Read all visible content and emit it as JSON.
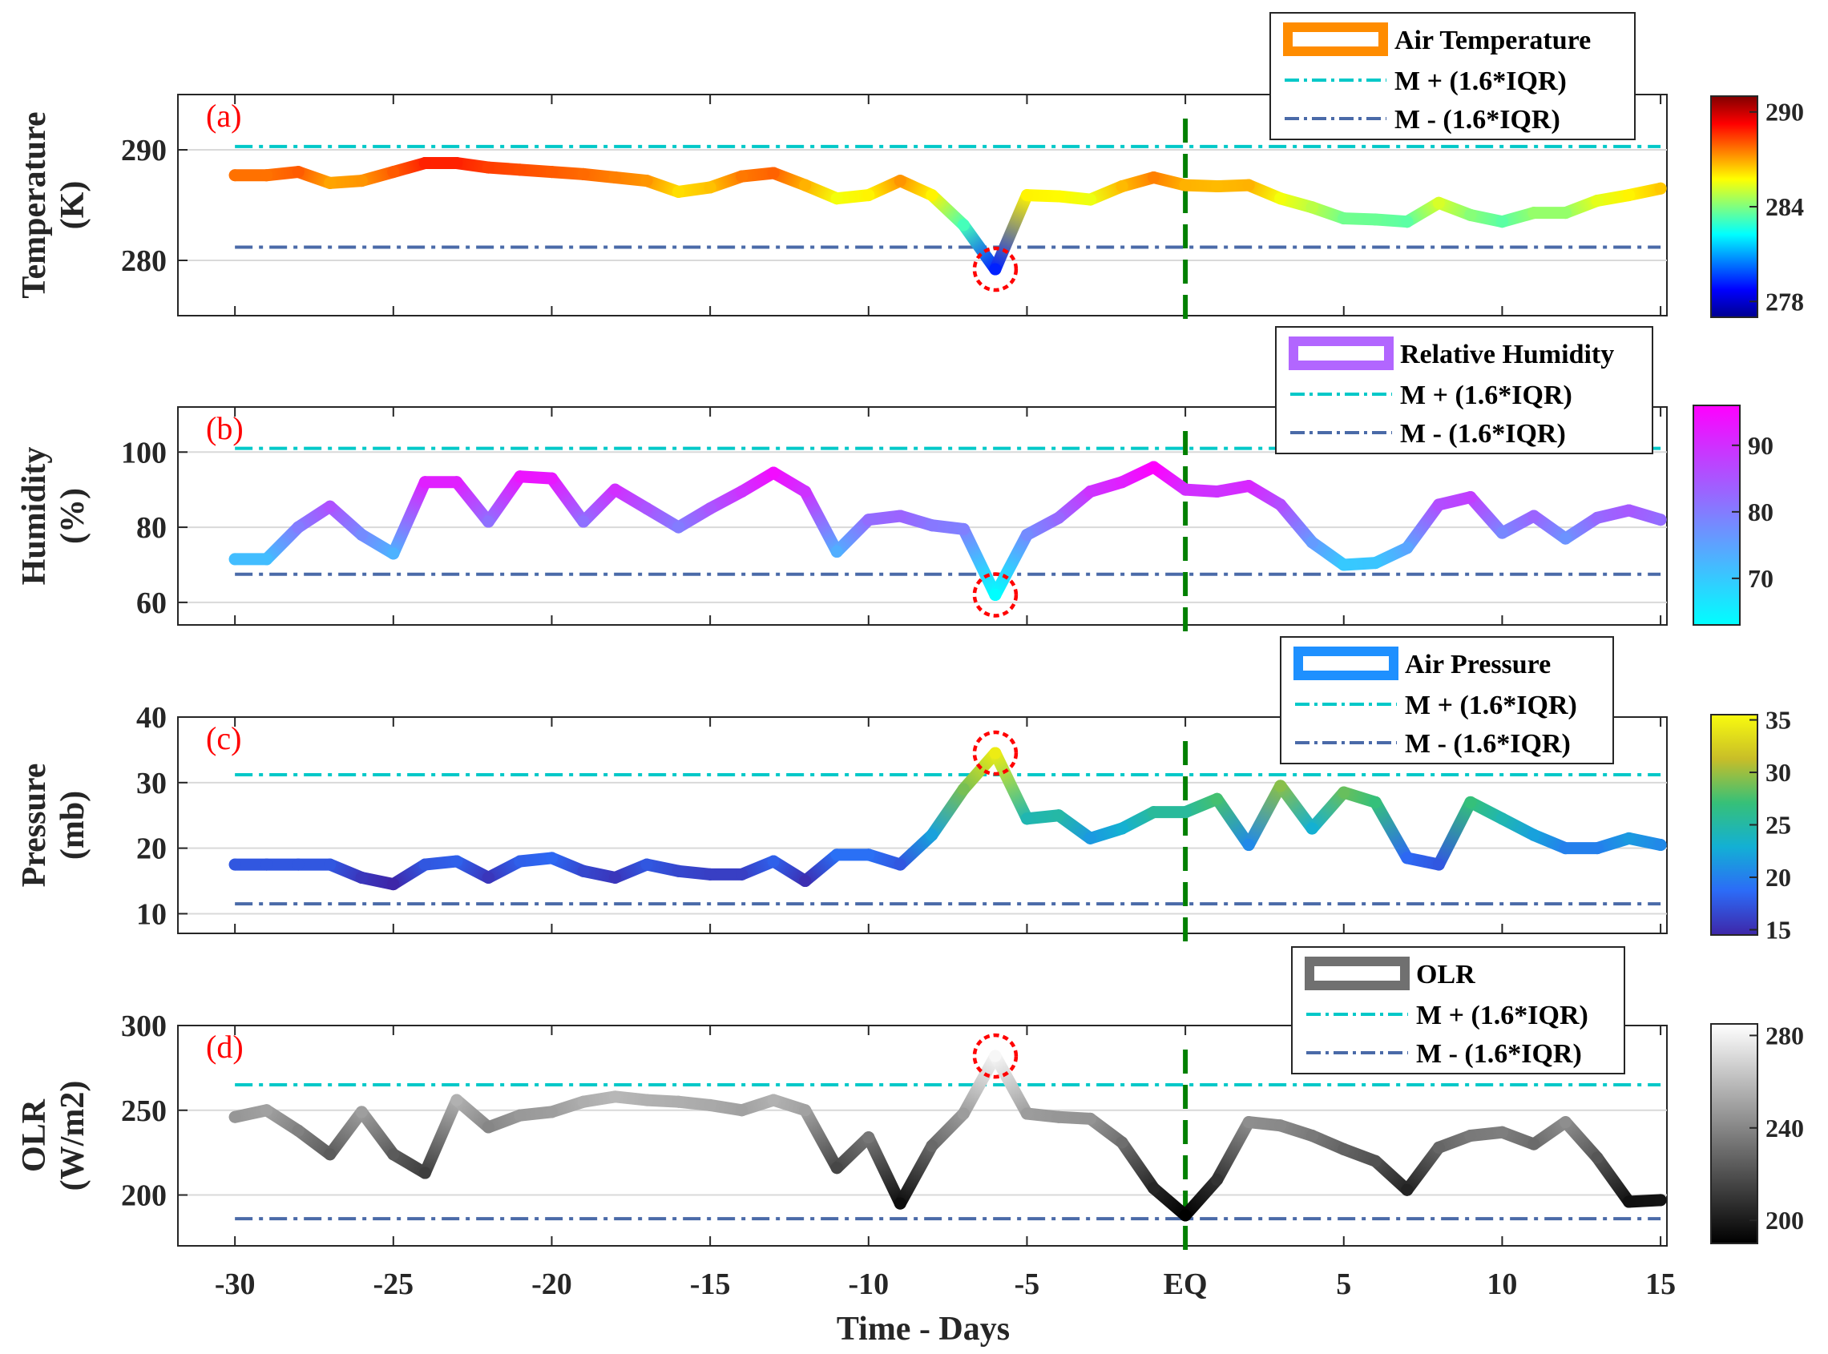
{
  "figure": {
    "xlabel": "Time - Days",
    "x_ticks": [
      -30,
      -25,
      -20,
      -15,
      -10,
      -5,
      0,
      5,
      10,
      15
    ],
    "x_tick_labels": [
      "-30",
      "-25",
      "-20",
      "-15",
      "-10",
      "-5",
      "EQ",
      "5",
      "10",
      "15"
    ],
    "eq_marker_day": 0,
    "eq_marker_color": "#008000",
    "upper_threshold_color": "#00c8c8",
    "lower_threshold_color": "#4a6aa8",
    "anomaly_marker_color": "#ff0000"
  },
  "chart_data": [
    {
      "type": "line",
      "panel_label": "(a)",
      "ylabel_line1": "Temperature",
      "ylabel_line2": "(K)",
      "ylim": [
        275,
        295
      ],
      "yticks": [
        280,
        290
      ],
      "x": [
        -30,
        -29,
        -28,
        -27,
        -26,
        -25,
        -24,
        -23,
        -22,
        -21,
        -20,
        -19,
        -18,
        -17,
        -16,
        -15,
        -14,
        -13,
        -12,
        -11,
        -10,
        -9,
        -8,
        -7,
        -6,
        -5,
        -4,
        -3,
        -2,
        -1,
        0,
        1,
        2,
        3,
        4,
        5,
        6,
        7,
        8,
        9,
        10,
        11,
        12,
        13,
        14,
        15
      ],
      "values": [
        287.7,
        287.7,
        288,
        287,
        287.2,
        288,
        288.8,
        288.8,
        288.4,
        288.2,
        288,
        287.8,
        287.5,
        287.2,
        286.2,
        286.6,
        287.6,
        287.9,
        286.8,
        285.6,
        285.9,
        287.2,
        285.9,
        283.2,
        279.2,
        285.9,
        285.8,
        285.5,
        286.7,
        287.5,
        286.8,
        286.7,
        286.8,
        285.6,
        284.8,
        283.8,
        283.7,
        283.5,
        285.2,
        284.1,
        283.5,
        284.3,
        284.3,
        285.4,
        285.9,
        286.5
      ],
      "series_name": "Air Temperature",
      "series_color": "#ff8c00",
      "upper_threshold": 290.3,
      "lower_threshold": 281.2,
      "anomaly_day": -6,
      "legend": [
        "Air Temperature",
        "M + (1.6*IQR)",
        "M - (1.6*IQR)"
      ],
      "colormap": "jet",
      "colorbar_range": [
        277,
        291
      ],
      "colorbar_ticks": [
        278,
        284,
        290
      ]
    },
    {
      "type": "line",
      "panel_label": "(b)",
      "ylabel_line1": "Humidity",
      "ylabel_line2": "(%)",
      "ylim": [
        54,
        112
      ],
      "yticks": [
        60,
        80,
        100
      ],
      "x": [
        -30,
        -29,
        -28,
        -27,
        -26,
        -25,
        -24,
        -23,
        -22,
        -21,
        -20,
        -19,
        -18,
        -17,
        -16,
        -15,
        -14,
        -13,
        -12,
        -11,
        -10,
        -9,
        -8,
        -7,
        -6,
        -5,
        -4,
        -3,
        -2,
        -1,
        0,
        1,
        2,
        3,
        4,
        5,
        6,
        7,
        8,
        9,
        10,
        11,
        12,
        13,
        14,
        15
      ],
      "values": [
        71.5,
        71.5,
        80,
        85.5,
        78,
        73,
        92,
        92,
        81.5,
        93.5,
        93,
        81.5,
        90,
        85,
        80,
        85,
        89.5,
        94.5,
        89.5,
        73.5,
        82,
        83,
        80.5,
        79.5,
        62,
        78,
        82.5,
        89.5,
        92,
        96,
        90,
        89.5,
        91,
        86,
        76,
        70,
        70.5,
        74.5,
        86,
        88,
        78.5,
        83,
        77,
        82.5,
        84.5,
        82
      ],
      "series_name": "Relative Humidity",
      "series_color": "#b266ff",
      "upper_threshold": 101,
      "lower_threshold": 67.5,
      "anomaly_day": -6,
      "legend": [
        "Relative Humidity",
        "M + (1.6*IQR)",
        "M - (1.6*IQR)"
      ],
      "colormap": "cool",
      "colorbar_range": [
        63,
        96
      ],
      "colorbar_ticks": [
        70,
        80,
        90
      ]
    },
    {
      "type": "line",
      "panel_label": "(c)",
      "ylabel_line1": "Pressure",
      "ylabel_line2": "(mb)",
      "ylim": [
        7,
        40
      ],
      "yticks": [
        10,
        20,
        30,
        40
      ],
      "x": [
        -30,
        -29,
        -28,
        -27,
        -26,
        -25,
        -24,
        -23,
        -22,
        -21,
        -20,
        -19,
        -18,
        -17,
        -16,
        -15,
        -14,
        -13,
        -12,
        -11,
        -10,
        -9,
        -8,
        -7,
        -6,
        -5,
        -4,
        -3,
        -2,
        -1,
        0,
        1,
        2,
        3,
        4,
        5,
        6,
        7,
        8,
        9,
        10,
        11,
        12,
        13,
        14,
        15
      ],
      "values": [
        17.5,
        17.5,
        17.5,
        17.5,
        15.5,
        14.5,
        17.5,
        18,
        15.5,
        18,
        18.5,
        16.5,
        15.5,
        17.5,
        16.5,
        16,
        16,
        18,
        15,
        19,
        19,
        17.5,
        22,
        29,
        34.5,
        24.5,
        25,
        21.5,
        23,
        25.5,
        25.5,
        27.5,
        20.5,
        29.5,
        23,
        28.5,
        27,
        18.5,
        17.5,
        27,
        24.5,
        22,
        20,
        20,
        21.5,
        20.5
      ],
      "series_name": "Air Pressure",
      "series_color": "#1e90ff",
      "upper_threshold": 31.2,
      "lower_threshold": 11.5,
      "anomaly_day": -6,
      "legend": [
        "Air Pressure",
        "M + (1.6*IQR)",
        "M - (1.6*IQR)"
      ],
      "colormap": "parula",
      "colorbar_range": [
        14.5,
        35.5
      ],
      "colorbar_ticks": [
        15,
        20,
        25,
        30,
        35
      ]
    },
    {
      "type": "line",
      "panel_label": "(d)",
      "ylabel_line1": "OLR",
      "ylabel_line2": "(W/m2)",
      "ylim": [
        170,
        300
      ],
      "yticks": [
        200,
        250,
        300
      ],
      "x": [
        -30,
        -29,
        -28,
        -27,
        -26,
        -25,
        -24,
        -23,
        -22,
        -21,
        -20,
        -19,
        -18,
        -17,
        -16,
        -15,
        -14,
        -13,
        -12,
        -11,
        -10,
        -9,
        -8,
        -7,
        -6,
        -5,
        -4,
        -3,
        -2,
        -1,
        0,
        1,
        2,
        3,
        4,
        5,
        6,
        7,
        8,
        9,
        10,
        11,
        12,
        13,
        14,
        15
      ],
      "values": [
        246,
        250,
        238,
        224,
        249,
        224,
        213,
        256,
        240,
        247,
        249,
        255,
        258,
        256,
        255,
        253,
        250,
        256,
        250,
        216,
        234,
        195,
        229,
        248,
        282,
        248,
        246,
        245,
        231,
        204,
        188,
        209,
        243,
        241,
        235,
        227,
        220,
        203,
        228,
        235,
        237,
        230,
        243,
        222,
        196,
        197
      ],
      "series_name": "OLR",
      "series_color": "#707070",
      "upper_threshold": 265,
      "lower_threshold": 186,
      "anomaly_day": -6,
      "legend": [
        "OLR",
        "M + (1.6*IQR)",
        "M - (1.6*IQR)"
      ],
      "colormap": "gray",
      "colorbar_range": [
        190,
        285
      ],
      "colorbar_ticks": [
        200,
        240,
        280
      ]
    }
  ]
}
